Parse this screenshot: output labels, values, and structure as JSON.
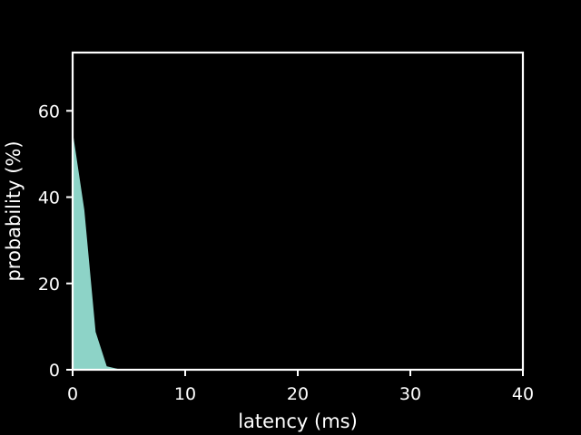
{
  "chart_data": {
    "type": "area",
    "title": "",
    "xlabel": "latency (ms)",
    "ylabel": "probability (%)",
    "xlim": [
      0,
      40
    ],
    "ylim": [
      0,
      73.5
    ],
    "xticks": [
      0,
      10,
      20,
      30,
      40
    ],
    "yticks": [
      0,
      20,
      40,
      60
    ],
    "grid": false,
    "series": [
      {
        "x": [
          0,
          1,
          2,
          3,
          4,
          5,
          6,
          7,
          8,
          9,
          10,
          15,
          20,
          25,
          30,
          35,
          40
        ],
        "values": [
          54.5,
          37.0,
          8.8,
          0.7,
          0.1,
          0,
          0,
          0,
          0,
          0,
          0,
          0,
          0,
          0,
          0,
          0,
          0
        ]
      }
    ],
    "colors": {
      "background": "#000000",
      "fill": "#8dd3c7",
      "axes": "#ffffff",
      "text": "#ffffff"
    }
  }
}
